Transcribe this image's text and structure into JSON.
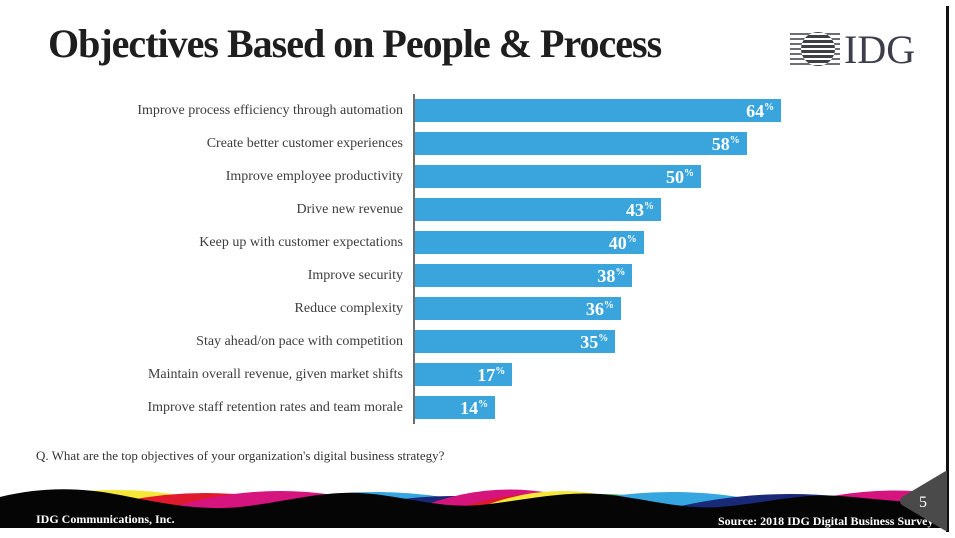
{
  "slide": {
    "title": "Objectives Based on People & Process",
    "logo_text": "IDG",
    "question": "Q. What are the top objectives of your organization's digital business strategy?",
    "footer_left": "IDG Communications,  Inc.",
    "footer_right": "Source: 2018 IDG Digital Business Survey",
    "page_number": "5"
  },
  "chart_data": {
    "type": "bar",
    "orientation": "horizontal",
    "title": "Objectives Based on People & Process",
    "categories": [
      "Improve process efficiency through automation",
      "Create better customer experiences",
      "Improve employee productivity",
      "Drive new revenue",
      "Keep up with customer expectations",
      "Improve security",
      "Reduce complexity",
      "Stay ahead/on pace with competition",
      "Maintain overall revenue, given market shifts",
      "Improve staff retention rates and team morale"
    ],
    "values": [
      64,
      58,
      50,
      43,
      40,
      38,
      36,
      35,
      17,
      14
    ],
    "unit": "%",
    "xlabel": "",
    "ylabel": "",
    "xlim": [
      0,
      92
    ],
    "grid": false,
    "legend": "none",
    "value_labels": "inside-end"
  },
  "colors": {
    "bar_blue": "#3AA5DC",
    "title_text": "#1E1E1E",
    "axis_line": "#6E6E6E",
    "wave_yellow": "#F6E838",
    "wave_green": "#2E9E41",
    "wave_red": "#E01A2C",
    "wave_magenta": "#D5147E",
    "wave_navy": "#1A2878",
    "wave_lightblue": "#35A6DF",
    "wave_black": "#050505",
    "badge_gray": "#4A4A4A",
    "strip_gray": "#8F8F8F",
    "logo_ink": "#3D3D4B"
  }
}
